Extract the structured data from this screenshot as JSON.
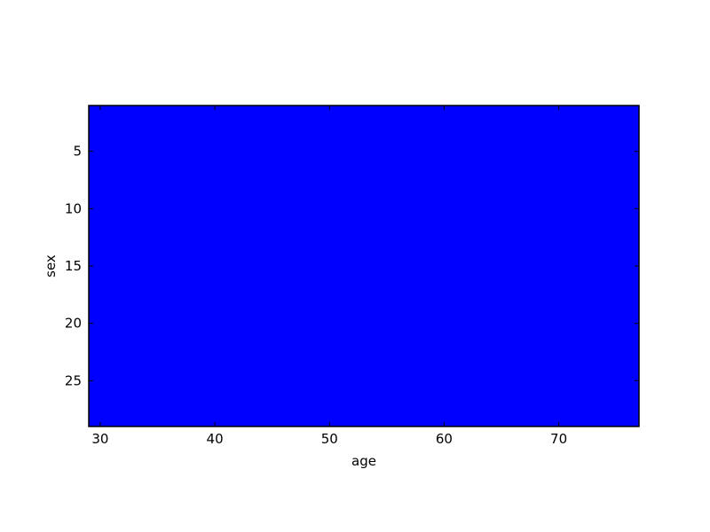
{
  "chart_data": {
    "type": "heatmap",
    "title": "",
    "xlabel": "age",
    "ylabel": "sex",
    "xlim": [
      29,
      77
    ],
    "ylim": [
      29,
      1
    ],
    "y_inverted": true,
    "x_ticks": [
      30,
      40,
      50,
      60,
      70
    ],
    "y_ticks": [
      5,
      10,
      15,
      20,
      25
    ],
    "x_tick_labels": [
      "30",
      "40",
      "50",
      "60",
      "70"
    ],
    "y_tick_labels": [
      "5",
      "10",
      "15",
      "20",
      "25"
    ],
    "fill": {
      "x_range": [
        29,
        77
      ],
      "y_range": [
        1,
        29
      ],
      "color": "#0000ff"
    },
    "grid": false,
    "legend": "none"
  },
  "colors": {
    "fill": "#0000ff",
    "axes": "#000000",
    "background": "#ffffff"
  }
}
